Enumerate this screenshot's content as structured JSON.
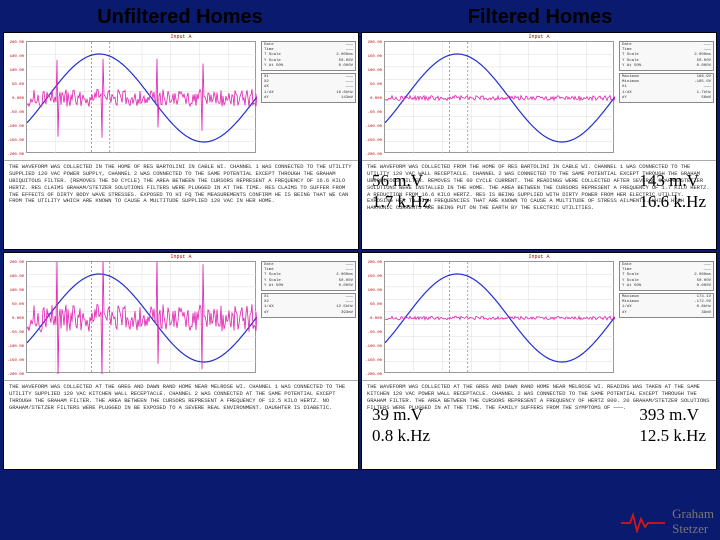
{
  "header": {
    "left": "Unfiltered Homes",
    "right": "Filtered Homes"
  },
  "labels": {
    "tl": {
      "l1": "143 m.V",
      "l2": "16.6 k.Hz"
    },
    "tr": {
      "l1": "56 m.V",
      "l2": "1.7 k.Hz"
    },
    "bl": {
      "l1": "393 m.V",
      "l2": "12.5 k.Hz"
    },
    "br": {
      "l1": "39 m.V",
      "l2": "0.8 k.Hz"
    }
  },
  "panels": {
    "tl": {
      "yticks": [
        "200.00",
        "180.00",
        "100.00",
        "50.00",
        "0.000",
        "-50.00",
        "-100.00",
        "-150.00",
        "-200.00"
      ],
      "title": "Input A",
      "noise_amp": 9,
      "noise_spikes": true,
      "sidebox": [
        {
          "k": "Date",
          "v": "———"
        },
        {
          "k": "Time",
          "v": "———"
        },
        {
          "k": "T Scale",
          "v": "2.000ms"
        },
        {
          "k": "Y Scale",
          "v": "50.00V"
        },
        {
          "k": "Y At 50%",
          "v": "0.000V"
        }
      ],
      "sidebox2": [
        {
          "k": "X1",
          "v": "———"
        },
        {
          "k": "X2",
          "v": "———"
        },
        {
          "k": "dX",
          "v": "———"
        },
        {
          "k": "1/dX",
          "v": "16.6kHz"
        },
        {
          "k": "dY",
          "v": "143mV"
        }
      ],
      "text": "THE WAVEFORM WAS COLLECTED IN THE HOME OF RES BARTOLINI IN CABLE WI. CHANNEL 1 WAS CONNECTED TO THE UTILITY SUPPLIED 120 VAC POWER SUPPLY, CHANNEL 2 WAS CONNECTED TO THE SAME POTENTIAL EXCEPT THROUGH THE GRAHAM UBIQUITOUS FILTER. (REMOVES THE 50 CYCLE) THE AREA BETWEEN THE CURSORS REPRESENT A FREQUENCY OF 16.6 KILO HERTZ. RES CLAIMS GRAHAM/STETZER SOLUTIONS FILTERS WERE PLUGGED IN AT THE TIME. RES CLAIMS TO SUFFER FROM THE EFFECTS OF DIRTY BODY WAVE STRESSES. EXPOSED TO HI FQ THE MEASUREMENTS CONFIRM HE IS BEING THAT WE CAN FROM THE UTILITY WHICH ARE KNOWN TO CAUSE A MULTITUDE SUPPLIED 120 VAC IN HER HOME."
    },
    "tr": {
      "yticks": [
        "200.00",
        "150.00",
        "100.00",
        "50.00",
        "0.000",
        "-50.00",
        "-100.00",
        "-150.00",
        "-200.00"
      ],
      "title": "Input A",
      "noise_amp": 2.5,
      "noise_spikes": false,
      "sidebox": [
        {
          "k": "Date",
          "v": "———"
        },
        {
          "k": "Time",
          "v": "———"
        },
        {
          "k": "T Scale",
          "v": "2.000ms"
        },
        {
          "k": "Y Scale",
          "v": "50.00V"
        },
        {
          "k": "Y At 50%",
          "v": "0.000V"
        }
      ],
      "sidebox2": [
        {
          "k": "Maximum",
          "v": "166.9V"
        },
        {
          "k": "Minimum",
          "v": "-165.0V"
        },
        {
          "k": "X1",
          "v": "———"
        },
        {
          "k": "1/dX",
          "v": "1.7kHz"
        },
        {
          "k": "dY",
          "v": "56mV"
        }
      ],
      "text": "THE WAVEFORM WAS COLLECTED FROM THE HOME OF RES BARTOLINI IN CABLE WI. CHANNEL 1 WAS CONNECTED TO THE UTILITY 120 VAC WALL RECEPTACLE. CHANNEL 2 WAS CONNECTED TO THE SAME POTENTIAL EXCEPT THROUGH THE GRAHAM UBIQUITOUS FILTER. REMOVES THE 60 CYCLE CURRENT. THE READINGS WERE COLLECTED AFTER SEVERAL GRAHAM/STETZER SOLUTIONS WERE INSTALLED IN THE HOME. THE AREA BETWEEN THE CURSORS REPRESENT A FREQUENCY OF 1.7 KILO HERTZ. A REDUCTION FROM 16.6 KILO HERTZ. RES IS BEING SUPPLIED WITH DIRTY POWER FROM HER ELECTRIC UTILITY. EXPOSING HER TO HIGH FREQUENCIES THAT ARE KNOWN TO CAUSE A MULTITUDE OF STRESS AILMENTS. WHICH HIGH HARMONIC CURRENTS ARE BEING PUT ON THE EARTH BY THE ELECTRIC UTILITIES."
    },
    "bl": {
      "yticks": [
        "200.00",
        "180.00",
        "100.00",
        "50.00",
        "0.000",
        "-50.00",
        "-100.00",
        "-150.00",
        "-200.00"
      ],
      "title": "Input A",
      "noise_amp": 14,
      "noise_spikes": true,
      "sidebox": [
        {
          "k": "Date",
          "v": "———"
        },
        {
          "k": "Time",
          "v": "———"
        },
        {
          "k": "T Scale",
          "v": "2.000ms"
        },
        {
          "k": "Y Scale",
          "v": "50.00V"
        },
        {
          "k": "Y At 50%",
          "v": "0.000V"
        }
      ],
      "sidebox2": [
        {
          "k": "X1",
          "v": "———"
        },
        {
          "k": "X2",
          "v": "———"
        },
        {
          "k": "1/dX",
          "v": "12.5kHz"
        },
        {
          "k": "dY",
          "v": "393mV"
        }
      ],
      "text": "THE WAVEFORM WAS COLLECTED AT THE GREG AND DAWN RAND HOME NEAR MELROSE WI. CHANNEL 1 WAS CONNECTED TO THE UTILITY SUPPLIED 120 VAC KITCHEN WALL RECEPTACLE. CHANNEL 2 WAS CONNECTED AT THE SAME POTENTIAL EXCEPT THROUGH THE GRAHAM FILTER. THE AREA BETWEEN THE CURSORS REPRESENT A FREQUENCY OF 12.5 KILO HERTZ. NO GRAHAM/STETZER FILTERS WERE PLUGGED IN BE EXPOSED TO A SEVERE REAL ENVIRONMENT. DAUGHTER IS DIABETIC."
    },
    "br": {
      "yticks": [
        "200.00",
        "150.00",
        "100.00",
        "50.00",
        "0.000",
        "-50.00",
        "-100.00",
        "-150.00",
        "-200.00"
      ],
      "title": "Input A",
      "noise_amp": 1.8,
      "noise_spikes": false,
      "sidebox": [
        {
          "k": "Date",
          "v": "———"
        },
        {
          "k": "Time",
          "v": "———"
        },
        {
          "k": "T Scale",
          "v": "2.000ms"
        },
        {
          "k": "Y Scale",
          "v": "50.00V"
        },
        {
          "k": "Y At 50%",
          "v": "0.000V"
        }
      ],
      "sidebox2": [
        {
          "k": "Maximum",
          "v": "174.1V"
        },
        {
          "k": "Minimum",
          "v": "-172.0V"
        },
        {
          "k": "1/dX",
          "v": "0.8kHz"
        },
        {
          "k": "dY",
          "v": "39mV"
        }
      ],
      "text": "THE WAVEFORM WAS COLLECTED AT THE GREG AND DAWN RAND HOME NEAR MELROSE WI. READING WAS TAKEN AT THE SAME KITCHEN 120 VAC POWER WALL RECEPTACLE. CHANNEL 2 WAS CONNECTED TO THE SAME POTENTIAL EXCEPT THROUGH THE GRAHAM FILTER. THE AREA BETWEEN THE CURSORS REPRESENT A FREQUENCY OF HERTZ 800. 20 GRAHAM/STETZER SOLUTIONS FILTERS WERE PLUGGED IN AT THE TIME. THE FAMILY SUFFERS FROM THE SYMPTOMS OF ———."
    }
  },
  "footer": {
    "l1": "Graham",
    "l2": "Stetzer"
  },
  "colors": {
    "bg": "#0a1a6e",
    "sine": "#2030d0",
    "noise": "#e020b0",
    "cursor": "#c04040",
    "grid": "#dddddd",
    "heartbeat": "#d01818"
  }
}
